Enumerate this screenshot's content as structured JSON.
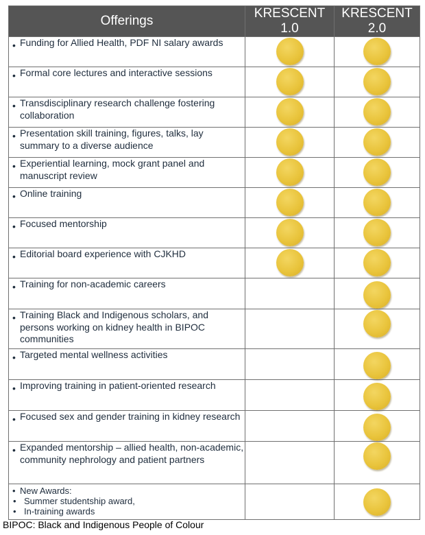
{
  "header": {
    "offerings": "Offerings",
    "krescent1_line1": "KRESCENT",
    "krescent1_line2": "1.0",
    "krescent2_line1": "KRESCENT",
    "krescent2_line2": "2.0"
  },
  "bullet": "•",
  "rows": [
    {
      "text": "Funding for Allied Health, PDF NI salary awards",
      "k1": true,
      "k2": true
    },
    {
      "text": "Formal core lectures and interactive sessions",
      "k1": true,
      "k2": true
    },
    {
      "text": "Transdisciplinary research challenge fostering collaboration",
      "k1": true,
      "k2": true
    },
    {
      "text": "Presentation skill training, figures, talks, lay summary to a diverse audience",
      "k1": true,
      "k2": true
    },
    {
      "text": "Experiential learning, mock grant panel and manuscript review",
      "k1": true,
      "k2": true
    },
    {
      "text": "Online training",
      "k1": true,
      "k2": true
    },
    {
      "text": "Focused mentorship",
      "k1": true,
      "k2": true
    },
    {
      "text": "Editorial board experience with CJKHD",
      "k1": true,
      "k2": true
    },
    {
      "text": "Training for non-academic careers",
      "k1": false,
      "k2": true
    },
    {
      "text": "Training Black and Indigenous scholars, and persons working on kidney health in BIPOC communities",
      "k1": false,
      "k2": true
    },
    {
      "text": "Targeted mental wellness activities",
      "k1": false,
      "k2": true
    },
    {
      "text": "Improving training in patient-oriented research",
      "k1": false,
      "k2": true
    },
    {
      "text": "Focused sex and gender training in kidney research",
      "k1": false,
      "k2": true
    },
    {
      "text": "Expanded mentorship – allied health, non-academic, community nephrology and patient partners",
      "k1": false,
      "k2": true
    }
  ],
  "awards": {
    "title": "New Awards:",
    "items": [
      "Summer studentship award,",
      "In-training awards"
    ],
    "k1": false,
    "k2": true
  },
  "footnote": "BIPOC: Black and Indigenous People of Colour"
}
